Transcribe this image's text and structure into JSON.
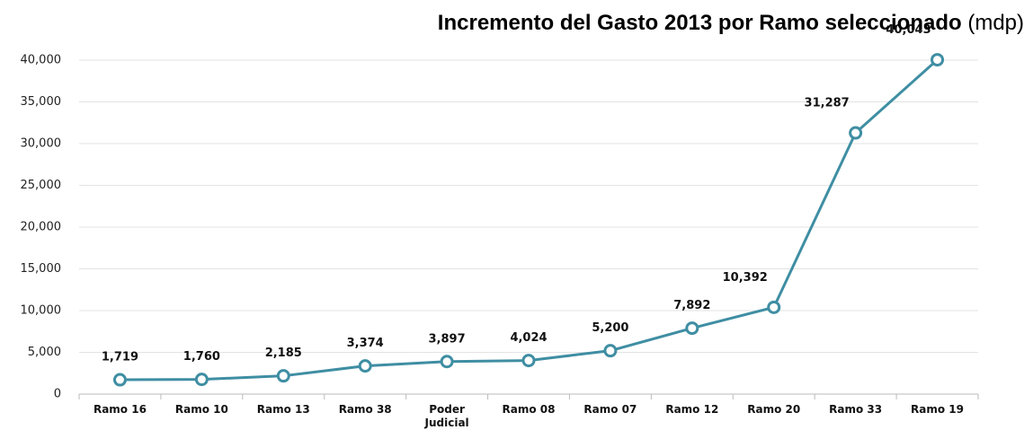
{
  "chart_data": {
    "type": "line",
    "title": "Incremento del Gasto 2013 por Ramo seleccionado",
    "title_unit": "(mdp)",
    "categories": [
      "Ramo 16",
      "Ramo 10",
      "Ramo 13",
      "Ramo 38",
      "Poder Judicial",
      "Ramo 08",
      "Ramo 07",
      "Ramo 12",
      "Ramo 20",
      "Ramo 33",
      "Ramo 19"
    ],
    "series": [
      {
        "color": "#3f8ea3",
        "values": [
          1719,
          1760,
          2185,
          3374,
          3897,
          4024,
          5200,
          7892,
          10392,
          31287,
          40043
        ],
        "value_labels": [
          "1,719",
          "1,760",
          "2,185",
          "3,374",
          "3,897",
          "4,024",
          "5,200",
          "7,892",
          "10,392",
          "31,287",
          "40,043"
        ]
      }
    ],
    "ylim": [
      0,
      40000
    ],
    "yticks": [
      0,
      {
        "value": 5000,
        "label": "5,000"
      },
      {
        "value": 10000,
        "label": "10,000"
      },
      {
        "value": 15000,
        "label": "15,000"
      },
      {
        "value": 20000,
        "label": "20,000"
      },
      {
        "value": 25000,
        "label": "25,000"
      },
      {
        "value": 30000,
        "label": "30,000"
      },
      {
        "value": 35000,
        "label": "35,000"
      },
      {
        "value": 40000,
        "label": "40,000"
      }
    ],
    "grid": true
  }
}
